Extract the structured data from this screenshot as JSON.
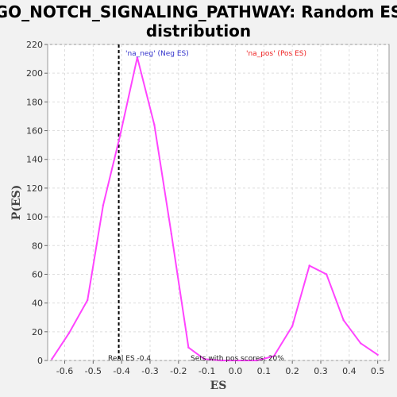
{
  "chart_data": {
    "type": "line",
    "title": "GO_NOTCH_SIGNALING_PATHWAY: Random ES distribution",
    "title_lines": [
      "GO_NOTCH_SIGNALING_PATHWAY: Random ES",
      "distribution"
    ],
    "xlabel": "ES",
    "ylabel": "P(ES)",
    "xlim": [
      -0.66,
      0.54
    ],
    "ylim": [
      0,
      220
    ],
    "x_ticks": [
      -0.6,
      -0.5,
      -0.4,
      -0.3,
      -0.2,
      -0.1,
      0.0,
      0.1,
      0.2,
      0.3,
      0.4,
      0.5
    ],
    "x_tick_labels": [
      "-0.6",
      "-0.5",
      "-0.4",
      "-0.3",
      "-0.2",
      "-0.1",
      "0.0",
      "0.1",
      "0.2",
      "0.3",
      "0.4",
      "0.5"
    ],
    "y_ticks": [
      0,
      20,
      40,
      60,
      80,
      100,
      120,
      140,
      160,
      180,
      200,
      220
    ],
    "y_tick_labels": [
      "0",
      "20",
      "40",
      "60",
      "80",
      "100",
      "120",
      "140",
      "160",
      "180",
      "200",
      "220"
    ],
    "grid": true,
    "series": [
      {
        "color": "#ff44ff",
        "x": [
          -0.645,
          -0.585,
          -0.52,
          -0.465,
          -0.405,
          -0.345,
          -0.285,
          -0.225,
          -0.165,
          -0.11,
          -0.05,
          0.01,
          0.075,
          0.135,
          0.2,
          0.26,
          0.32,
          0.38,
          0.44,
          0.5
        ],
        "y": [
          1,
          19,
          42,
          108,
          157,
          211,
          164,
          88,
          9,
          1,
          0,
          0,
          0,
          3,
          24,
          66,
          60,
          28,
          12,
          4
        ]
      }
    ],
    "real_es": -0.41,
    "real_es_color": "#000000",
    "annotations": {
      "neg_label": "'na_neg' (Neg ES)",
      "neg_color": "#3333cc",
      "pos_label": "'na_pos' (Pos ES)",
      "pos_color": "#ee2222",
      "real_es_label": "Real ES -0.4",
      "sets_label": "Sets with pos scores: 20%"
    }
  }
}
